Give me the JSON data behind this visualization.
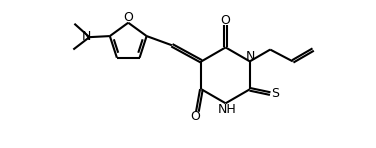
{
  "bg_color": "#ffffff",
  "line_color": "#000000",
  "lw": 1.5,
  "fs": 9,
  "fig_width": 3.76,
  "fig_height": 1.48,
  "dpi": 100,
  "xlim": [
    -2.2,
    4.8
  ],
  "ylim": [
    -1.0,
    1.05
  ]
}
